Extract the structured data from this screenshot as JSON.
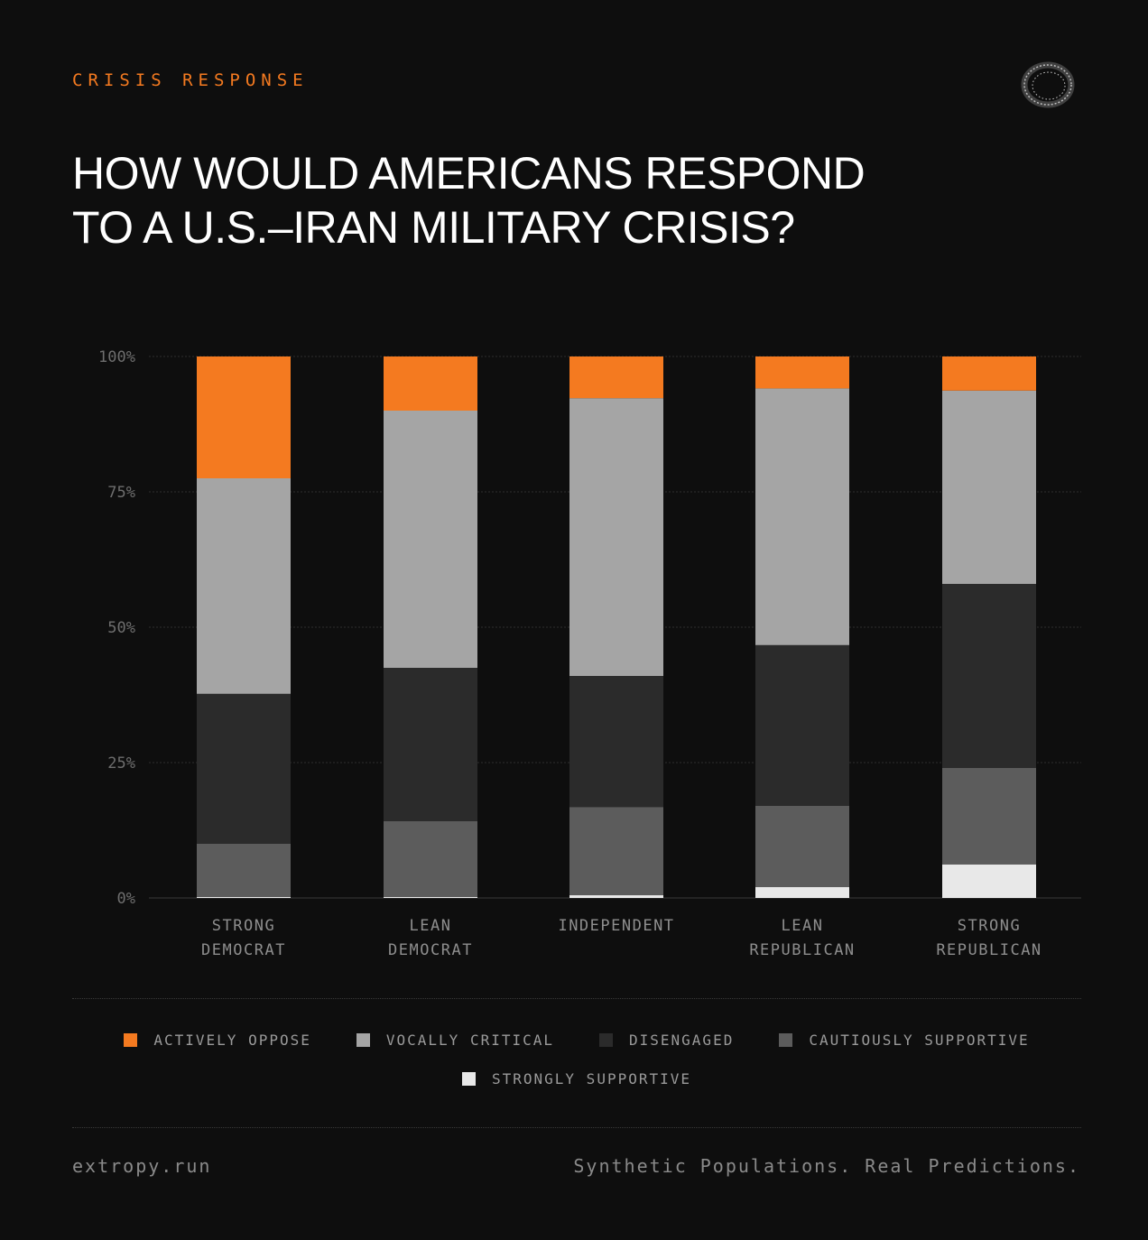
{
  "header": {
    "kicker": "CRISIS RESPONSE",
    "title_line1": "HOW WOULD AMERICANS RESPOND",
    "title_line2": "TO A U.S.–IRAN MILITARY CRISIS?",
    "logo_icon": "ring-logo-icon"
  },
  "colors": {
    "background": "#0e0e0e",
    "accent": "#f47a20",
    "actively_oppose": "#f47a20",
    "vocally_critical": "#a5a5a5",
    "disengaged": "#2b2b2b",
    "cautiously_supportive": "#5c5c5c",
    "strongly_supportive": "#e8e8e8"
  },
  "chart_data": {
    "type": "bar",
    "stacked": true,
    "categories": [
      [
        "STRONG",
        "DEMOCRAT"
      ],
      [
        "LEAN",
        "DEMOCRAT"
      ],
      [
        "INDEPENDENT"
      ],
      [
        "LEAN",
        "REPUBLICAN"
      ],
      [
        "STRONG",
        "REPUBLICAN"
      ]
    ],
    "ylim": [
      0,
      100
    ],
    "yticks": [
      0,
      25,
      50,
      75,
      100
    ],
    "ytick_labels": [
      "0%",
      "25%",
      "50%",
      "75%",
      "100%"
    ],
    "grid": true,
    "legend_position": "bottom",
    "series": [
      {
        "name": "STRONGLY SUPPORTIVE",
        "color": "#e8e8e8",
        "values": [
          0.2,
          0.2,
          0.5,
          2.0,
          6.2
        ]
      },
      {
        "name": "CAUTIOUSLY SUPPORTIVE",
        "color": "#5c5c5c",
        "values": [
          9.8,
          14.0,
          16.3,
          15.0,
          17.8
        ]
      },
      {
        "name": "DISENGAGED",
        "color": "#2b2b2b",
        "values": [
          27.7,
          28.3,
          24.2,
          29.7,
          34.0
        ]
      },
      {
        "name": "VOCALLY CRITICAL",
        "color": "#a5a5a5",
        "values": [
          39.8,
          47.5,
          51.3,
          47.4,
          35.7
        ]
      },
      {
        "name": "ACTIVELY OPPOSE",
        "color": "#f47a20",
        "values": [
          22.5,
          10.0,
          7.7,
          5.9,
          6.3
        ]
      }
    ]
  },
  "legend": {
    "row1": [
      {
        "label": "ACTIVELY OPPOSE",
        "color": "#f47a20"
      },
      {
        "label": "VOCALLY CRITICAL",
        "color": "#a5a5a5"
      },
      {
        "label": "DISENGAGED",
        "color": "#2b2b2b"
      },
      {
        "label": "CAUTIOUSLY SUPPORTIVE",
        "color": "#5c5c5c"
      }
    ],
    "row2": [
      {
        "label": "STRONGLY SUPPORTIVE",
        "color": "#e8e8e8"
      }
    ]
  },
  "footer": {
    "site": "extropy.run",
    "tagline": "Synthetic Populations. Real Predictions."
  }
}
